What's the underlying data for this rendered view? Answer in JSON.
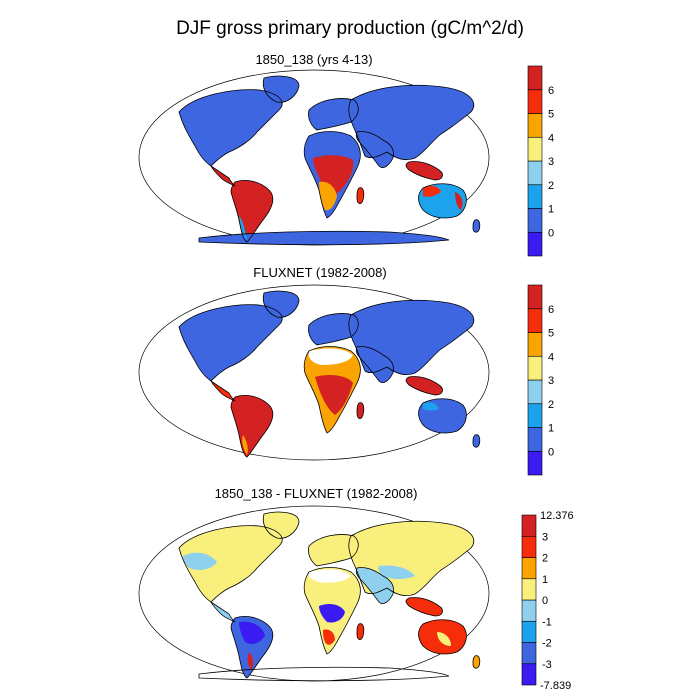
{
  "title": "DJF gross primary production (gC/m^2/d)",
  "panels": [
    {
      "title": "1850_138 (yrs 4-13)",
      "colorbar": {
        "labels": [
          "0",
          "1",
          "2",
          "3",
          "4",
          "5",
          "6"
        ],
        "colors": [
          "#3a1cf2",
          "#3d66e0",
          "#1da3ee",
          "#8fd0ee",
          "#f9ef7c",
          "#f9a400",
          "#f62d0a",
          "#d42222"
        ]
      }
    },
    {
      "title": "FLUXNET (1982-2008)",
      "colorbar": {
        "labels": [
          "0",
          "1",
          "2",
          "3",
          "4",
          "5",
          "6"
        ],
        "colors": [
          "#3a1cf2",
          "#3d66e0",
          "#1da3ee",
          "#8fd0ee",
          "#f9ef7c",
          "#f9a400",
          "#f62d0a",
          "#d42222"
        ]
      }
    },
    {
      "title": "1850_138 - FLUXNET (1982-2008)",
      "colorbar": {
        "labels": [
          "-3",
          "-2",
          "-1",
          "0",
          "1",
          "2",
          "3"
        ],
        "max_label": "12.376",
        "min_label": "-7.839",
        "colors": [
          "#3a1cf2",
          "#3d66e0",
          "#1da3ee",
          "#8fd0ee",
          "#f9ef7c",
          "#f9a400",
          "#f62d0a",
          "#d42222"
        ]
      }
    }
  ],
  "palette": {
    "ocean": "#ffffff",
    "coast": "#000000"
  }
}
